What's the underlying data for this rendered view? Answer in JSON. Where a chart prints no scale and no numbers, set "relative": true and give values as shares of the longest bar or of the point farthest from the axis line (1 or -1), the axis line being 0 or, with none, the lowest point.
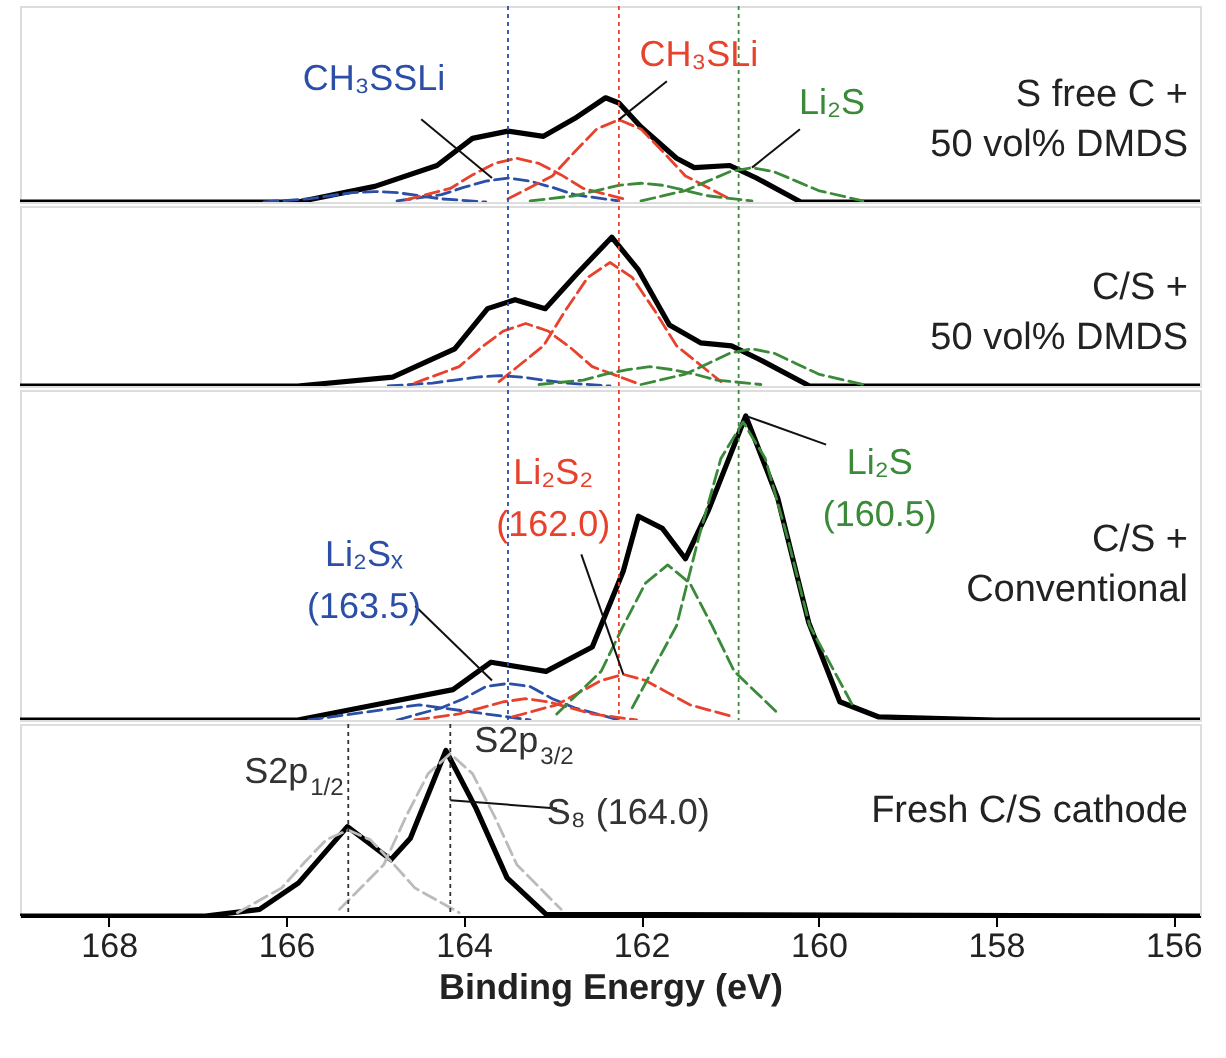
{
  "chart_data": [
    {
      "type": "line",
      "relative": true,
      "xlim": [
        169,
        155.7
      ],
      "tick_labels": false,
      "grid": false,
      "marker": "none",
      "series": [
        {
          "color": "#000000",
          "line_style": "solid",
          "x": [
            169,
            165.87,
            165.0,
            164.3,
            163.9,
            163.5,
            163.1,
            162.75,
            162.4,
            162.25,
            162.0,
            161.6,
            161.4,
            161.0,
            160.7,
            160.2,
            155.7
          ],
          "values": [
            0,
            0,
            0.15,
            0.35,
            0.61,
            0.68,
            0.63,
            0.8,
            1,
            0.95,
            0.72,
            0.42,
            0.33,
            0.35,
            0.23,
            0,
            0
          ]
        },
        {
          "color": "#2b4fa6",
          "line_style": "dashed",
          "x": [
            166.25,
            165.75,
            165.5,
            165.25,
            165,
            164.75,
            164.5,
            164.25,
            163.75
          ],
          "values": [
            0,
            0.03,
            0.06,
            0.09,
            0.1,
            0.09,
            0.06,
            0.03,
            0
          ]
        },
        {
          "color": "#2b4fa6",
          "line_style": "dashed",
          "x": [
            164.75,
            164.25,
            164,
            163.75,
            163.5,
            163.25,
            163,
            162.75,
            162.25
          ],
          "values": [
            0.01,
            0.07,
            0.14,
            0.2,
            0.23,
            0.2,
            0.14,
            0.07,
            0.01
          ]
        },
        {
          "color": "#e8412c",
          "line_style": "dashed",
          "x": [
            164.65,
            164.15,
            163.9,
            163.65,
            163.4,
            163.15,
            162.9,
            162.65,
            162.15
          ],
          "values": [
            0.02,
            0.13,
            0.26,
            0.37,
            0.42,
            0.37,
            0.26,
            0.13,
            0.02
          ]
        },
        {
          "color": "#e8412c",
          "line_style": "dashed",
          "x": [
            163.5,
            163,
            162.75,
            162.5,
            162.25,
            162,
            161.75,
            161.5,
            161
          ],
          "values": [
            0.03,
            0.25,
            0.48,
            0.7,
            0.79,
            0.7,
            0.48,
            0.25,
            0.03
          ]
        },
        {
          "color": "#3a8a3a",
          "line_style": "dashed",
          "x": [
            163.25,
            162.75,
            162.5,
            162.25,
            162,
            161.75,
            161.5,
            161.25,
            160.75
          ],
          "values": [
            0.01,
            0.06,
            0.11,
            0.16,
            0.18,
            0.16,
            0.11,
            0.06,
            0.01
          ]
        },
        {
          "color": "#3a8a3a",
          "line_style": "dashed",
          "x": [
            162,
            161.5,
            161.25,
            161,
            160.75,
            160.5,
            160.25,
            160,
            159.5
          ],
          "values": [
            0.01,
            0.11,
            0.2,
            0.29,
            0.33,
            0.29,
            0.2,
            0.11,
            0.01
          ]
        }
      ],
      "ref_lines": [
        {
          "axis": "x",
          "value": 163.5,
          "color": "#2b4fa6",
          "line_style": "dotted"
        },
        {
          "axis": "x",
          "value": 162.25,
          "color": "#e8412c",
          "line_style": "dotted"
        },
        {
          "axis": "x",
          "value": 160.9,
          "color": "#3a8a3a",
          "line_style": "dotted"
        }
      ],
      "annotations": [
        {
          "text": "CH₃SSLi",
          "x": 163.68,
          "y": 0.23
        },
        {
          "text": "CH₃SLi",
          "x": 162.25,
          "y": 0.79
        },
        {
          "text": "Li₂S",
          "x": 160.75,
          "y": 0.33
        },
        "S free C +\n50 vol% DMDS"
      ]
    },
    {
      "type": "line",
      "relative": true,
      "xlim": [
        169,
        155.7
      ],
      "tick_labels": false,
      "grid": false,
      "marker": "none",
      "series": [
        {
          "color": "#000000",
          "line_style": "solid",
          "x": [
            169,
            165.87,
            164.8,
            164.1,
            163.73,
            163.42,
            163.08,
            162.73,
            162.33,
            162.03,
            161.68,
            161.33,
            160.98,
            160.67,
            160.1,
            155.7
          ],
          "values": [
            0,
            0,
            0.06,
            0.25,
            0.52,
            0.58,
            0.52,
            0.75,
            1,
            0.78,
            0.41,
            0.29,
            0.27,
            0.18,
            0,
            0
          ]
        },
        {
          "color": "#2b4fa6",
          "line_style": "dashed",
          "x": [
            164.85,
            164.35,
            164.1,
            163.85,
            163.6,
            163.35,
            163.1,
            162.85,
            162.35
          ],
          "values": [
            0,
            0.02,
            0.04,
            0.06,
            0.07,
            0.06,
            0.04,
            0.02,
            0
          ]
        },
        {
          "color": "#e8412c",
          "line_style": "dashed",
          "x": [
            164.55,
            164.05,
            163.8,
            163.55,
            163.3,
            163.05,
            162.8,
            162.55,
            162.05
          ],
          "values": [
            0.02,
            0.13,
            0.26,
            0.37,
            0.42,
            0.37,
            0.26,
            0.13,
            0.02
          ]
        },
        {
          "color": "#e8412c",
          "line_style": "dashed",
          "x": [
            163.6,
            163.1,
            162.85,
            162.6,
            162.35,
            162.1,
            161.85,
            161.6,
            161.1
          ],
          "values": [
            0.03,
            0.27,
            0.51,
            0.73,
            0.83,
            0.73,
            0.51,
            0.27,
            0.03
          ]
        },
        {
          "color": "#3a8a3a",
          "line_style": "dashed",
          "x": [
            163.15,
            162.65,
            162.4,
            162.15,
            161.9,
            161.65,
            161.4,
            161.15,
            160.65
          ],
          "values": [
            0.01,
            0.04,
            0.08,
            0.11,
            0.13,
            0.11,
            0.08,
            0.04,
            0.01
          ]
        },
        {
          "color": "#3a8a3a",
          "line_style": "dashed",
          "x": [
            162,
            161.5,
            161.25,
            161,
            160.75,
            160.5,
            160.25,
            160,
            159.5
          ],
          "values": [
            0.01,
            0.08,
            0.15,
            0.22,
            0.25,
            0.22,
            0.15,
            0.08,
            0.01
          ]
        }
      ],
      "ref_lines": [
        {
          "axis": "x",
          "value": 163.5,
          "color": "#2b4fa6",
          "line_style": "dotted"
        },
        {
          "axis": "x",
          "value": 162.25,
          "color": "#e8412c",
          "line_style": "dotted"
        },
        {
          "axis": "x",
          "value": 160.9,
          "color": "#3a8a3a",
          "line_style": "dotted"
        }
      ],
      "annotations": [
        "C/S +\n50 vol% DMDS"
      ]
    },
    {
      "type": "line",
      "relative": true,
      "xlim": [
        169,
        155.7
      ],
      "tick_labels": false,
      "grid": false,
      "marker": "none",
      "series": [
        {
          "color": "#000000",
          "line_style": "solid",
          "x": [
            169,
            165.87,
            164.82,
            164.12,
            163.69,
            163.07,
            162.55,
            162.2,
            162.03,
            161.76,
            161.5,
            161.24,
            160.82,
            160.46,
            160.11,
            159.76,
            159.32,
            158,
            155.7
          ],
          "values": [
            0,
            0,
            0.06,
            0.1,
            0.19,
            0.16,
            0.24,
            0.49,
            0.67,
            0.63,
            0.53,
            0.69,
            1,
            0.73,
            0.32,
            0.06,
            0.01,
            0,
            0
          ]
        },
        {
          "color": "#2b4fa6",
          "line_style": "dashed",
          "x": [
            165.75,
            165.25,
            165,
            164.75,
            164.5,
            164.25,
            164,
            163.75,
            163.25
          ],
          "values": [
            0,
            0.02,
            0.03,
            0.04,
            0.05,
            0.04,
            0.03,
            0.02,
            0
          ]
        },
        {
          "color": "#2b4fa6",
          "line_style": "dashed",
          "x": [
            164.75,
            164.25,
            164,
            163.75,
            163.5,
            163.25,
            163,
            162.75,
            162.25
          ],
          "values": [
            0,
            0.04,
            0.07,
            0.11,
            0.12,
            0.11,
            0.07,
            0.04,
            0
          ]
        },
        {
          "color": "#e8412c",
          "line_style": "dashed",
          "x": [
            164.55,
            164.05,
            163.8,
            163.55,
            163.3,
            163.05,
            162.8,
            162.55,
            162.05
          ],
          "values": [
            0,
            0.02,
            0.04,
            0.06,
            0.07,
            0.06,
            0.04,
            0.02,
            0
          ]
        },
        {
          "color": "#e8412c",
          "line_style": "dashed",
          "x": [
            163.45,
            162.95,
            162.7,
            162.45,
            162.2,
            161.95,
            161.7,
            161.45,
            160.95
          ],
          "values": [
            0.01,
            0.05,
            0.09,
            0.13,
            0.15,
            0.13,
            0.09,
            0.05,
            0.01
          ]
        },
        {
          "color": "#3a8a3a",
          "line_style": "dashed",
          "x": [
            162.95,
            162.45,
            162.2,
            161.95,
            161.7,
            161.45,
            161.2,
            160.95,
            160.45
          ],
          "values": [
            0.02,
            0.16,
            0.31,
            0.45,
            0.51,
            0.45,
            0.31,
            0.16,
            0.02
          ]
        },
        {
          "color": "#3a8a3a",
          "line_style": "dashed",
          "x": [
            162.1,
            161.6,
            161.35,
            161.1,
            160.85,
            160.6,
            160.35,
            160.1,
            159.6
          ],
          "values": [
            0.04,
            0.31,
            0.6,
            0.86,
            0.98,
            0.86,
            0.6,
            0.31,
            0.04
          ]
        }
      ],
      "ref_lines": [
        {
          "axis": "x",
          "value": 163.5,
          "color": "#2b4fa6",
          "line_style": "dotted"
        },
        {
          "axis": "x",
          "value": 162.25,
          "color": "#e8412c",
          "line_style": "dotted"
        },
        {
          "axis": "x",
          "value": 160.9,
          "color": "#3a8a3a",
          "line_style": "dotted"
        }
      ],
      "annotations": [
        {
          "text": "Li₂Sₓ\n(163.5)",
          "x": 163.68,
          "y": 0.13
        },
        {
          "text": "Li₂S₂\n(162.0)",
          "x": 162.2,
          "y": 0.15
        },
        {
          "text": "Li₂S\n(160.5)",
          "x": 160.82,
          "y": 1
        },
        "C/S +\nConventional"
      ]
    },
    {
      "type": "line",
      "relative": true,
      "xlim": [
        169,
        155.7
      ],
      "xticks": [
        168,
        166,
        164,
        162,
        160,
        158,
        156
      ],
      "xlabel": "Binding Energy (eV)",
      "tick_labels": "x",
      "grid": false,
      "marker": "none",
      "series": [
        {
          "color": "#000000",
          "line_style": "solid",
          "x": [
            169,
            166.91,
            166.3,
            165.86,
            165.31,
            164.82,
            164.6,
            164.2,
            163.86,
            163.51,
            163.07,
            155.7
          ],
          "values": [
            0,
            0,
            0.04,
            0.2,
            0.54,
            0.34,
            0.47,
            1,
            0.65,
            0.23,
            0.01,
            0
          ]
        },
        {
          "color": "#bbbbbb",
          "line_style": "dashed",
          "x": [
            166.55,
            166.05,
            165.8,
            165.55,
            165.3,
            165.05,
            164.8,
            164.55,
            164.05
          ],
          "values": [
            0.02,
            0.17,
            0.32,
            0.46,
            0.52,
            0.46,
            0.32,
            0.17,
            0.02
          ]
        },
        {
          "color": "#bbbbbb",
          "line_style": "dashed",
          "x": [
            165.4,
            164.9,
            164.65,
            164.4,
            164.15,
            163.9,
            163.65,
            163.4,
            162.9
          ],
          "values": [
            0.04,
            0.31,
            0.6,
            0.86,
            0.98,
            0.86,
            0.6,
            0.31,
            0.04
          ]
        }
      ],
      "ref_lines": [
        {
          "axis": "x",
          "value": 165.3,
          "color": "#333333",
          "line_style": "dotted"
        },
        {
          "axis": "x",
          "value": 164.15,
          "color": "#333333",
          "line_style": "dotted"
        }
      ],
      "annotations": [
        {
          "text": "S2p$_{1/2}$",
          "x": 165.3,
          "y": 0.54
        },
        {
          "text": "S2p$_{3/2}$",
          "x": 164.15,
          "y": 1
        },
        {
          "text": "S₈ (164.0)",
          "x": 164.15,
          "y": 0.7
        },
        "Fresh C/S cathode"
      ]
    }
  ]
}
